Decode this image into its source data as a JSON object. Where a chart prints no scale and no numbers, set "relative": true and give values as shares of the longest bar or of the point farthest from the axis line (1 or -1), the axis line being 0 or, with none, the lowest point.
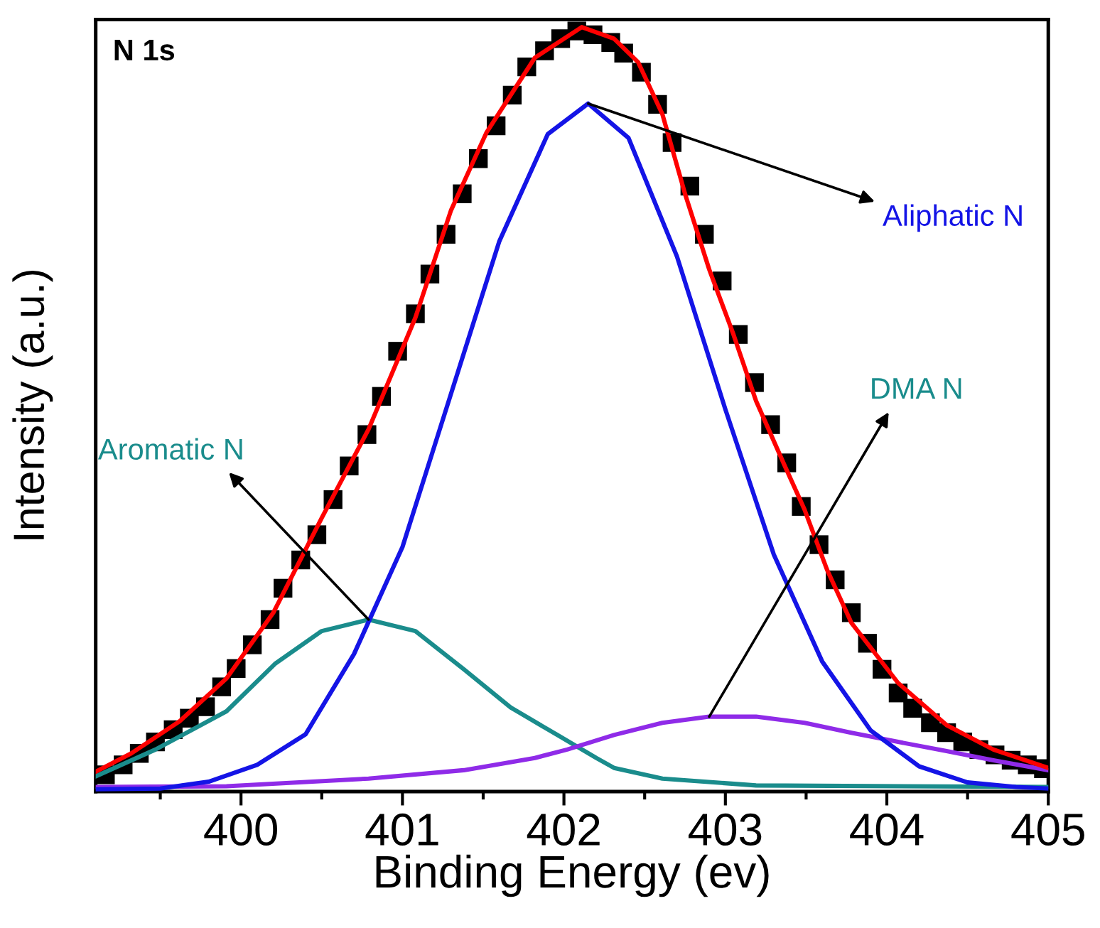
{
  "chart_data": {
    "type": "line",
    "relative": true,
    "xlabel": "Binding Energy (ev)",
    "ylabel": "Intensity (a.u.)",
    "xlim": [
      399.1,
      405
    ],
    "xticks": [
      {
        "value": 399.5,
        "label": null
      },
      400,
      {
        "value": 400.5,
        "label": null
      },
      401,
      {
        "value": 401.5,
        "label": null
      },
      402,
      {
        "value": 402.5,
        "label": null
      },
      403,
      {
        "value": 403.5,
        "label": null
      },
      404,
      {
        "value": 404.5,
        "label": null
      },
      405
    ],
    "grid": false,
    "legend": false,
    "annotations": [
      "N 1s"
    ],
    "series": [
      {
        "type": "scatter",
        "marker": "square",
        "color": "#000000",
        "x": [
          399.16,
          399.27,
          399.37,
          399.47,
          399.58,
          399.68,
          399.78,
          399.88,
          399.97,
          400.07,
          400.18,
          400.26,
          400.37,
          400.47,
          400.57,
          400.67,
          400.78,
          400.87,
          400.97,
          401.08,
          401.17,
          401.27,
          401.37,
          401.47,
          401.58,
          401.68,
          401.77,
          401.88,
          401.98,
          402.08,
          402.18,
          402.29,
          402.37,
          402.48,
          402.58,
          402.67,
          402.78,
          402.87,
          402.98,
          403.08,
          403.18,
          403.28,
          403.38,
          403.47,
          403.58,
          403.68,
          403.78,
          403.88,
          403.97,
          404.07,
          404.16,
          404.27,
          404.37,
          404.47,
          404.57,
          404.67,
          404.77,
          404.87,
          404.97
        ],
        "values": [
          0.022,
          0.035,
          0.05,
          0.065,
          0.081,
          0.096,
          0.111,
          0.137,
          0.161,
          0.192,
          0.225,
          0.266,
          0.303,
          0.336,
          0.382,
          0.426,
          0.467,
          0.517,
          0.576,
          0.625,
          0.677,
          0.729,
          0.782,
          0.828,
          0.871,
          0.911,
          0.948,
          0.969,
          0.985,
          0.995,
          0.99,
          0.98,
          0.966,
          0.941,
          0.899,
          0.849,
          0.792,
          0.729,
          0.668,
          0.598,
          0.535,
          0.48,
          0.43,
          0.373,
          0.323,
          0.277,
          0.234,
          0.194,
          0.16,
          0.129,
          0.109,
          0.09,
          0.077,
          0.065,
          0.055,
          0.048,
          0.041,
          0.035,
          0.03
        ]
      },
      {
        "color": "#1a8c8c",
        "name": "Aromatic N",
        "x": [
          399.1,
          399.47,
          399.91,
          400.21,
          400.5,
          400.79,
          401.08,
          401.38,
          401.67,
          401.96,
          402.2,
          402.31,
          402.61,
          403.19,
          405
        ],
        "values": [
          0.02,
          0.055,
          0.105,
          0.167,
          0.21,
          0.225,
          0.21,
          0.16,
          0.11,
          0.074,
          0.044,
          0.031,
          0.017,
          0.008,
          0.006
        ]
      },
      {
        "color": "#8f2be8",
        "name": "DMA N",
        "x": [
          399.1,
          399.91,
          400.79,
          401.38,
          401.82,
          402.02,
          402.31,
          402.61,
          402.9,
          403.19,
          403.49,
          403.78,
          404.07,
          404.37,
          404.66,
          405
        ],
        "values": [
          0.006,
          0.007,
          0.017,
          0.028,
          0.044,
          0.055,
          0.074,
          0.09,
          0.098,
          0.098,
          0.09,
          0.077,
          0.065,
          0.053,
          0.041,
          0.028
        ]
      },
      {
        "color": "#1414e6",
        "name": "Aliphatic N",
        "x": [
          399.1,
          399.5,
          399.8,
          400.1,
          400.4,
          400.7,
          401.0,
          401.3,
          401.6,
          401.9,
          402.15,
          402.4,
          402.7,
          403.0,
          403.3,
          403.6,
          403.9,
          404.2,
          404.5,
          404.8,
          405.0
        ],
        "values": [
          0.003,
          0.004,
          0.013,
          0.035,
          0.075,
          0.18,
          0.32,
          0.52,
          0.72,
          0.86,
          0.9,
          0.855,
          0.7,
          0.5,
          0.31,
          0.17,
          0.08,
          0.033,
          0.012,
          0.006,
          0.004
        ]
      },
      {
        "color": "#ff0000",
        "x": [
          399.1,
          399.32,
          399.62,
          399.91,
          400.2,
          400.5,
          400.79,
          401.08,
          401.3,
          401.52,
          401.82,
          402.11,
          402.31,
          402.46,
          402.61,
          402.75,
          402.9,
          403.05,
          403.19,
          403.37,
          403.49,
          403.63,
          403.78,
          404.07,
          404.37,
          404.66,
          405
        ],
        "values": [
          0.026,
          0.05,
          0.092,
          0.148,
          0.234,
          0.358,
          0.474,
          0.62,
          0.76,
          0.862,
          0.96,
          1.0,
          0.985,
          0.954,
          0.886,
          0.782,
          0.683,
          0.598,
          0.511,
          0.425,
          0.369,
          0.29,
          0.221,
          0.142,
          0.087,
          0.055,
          0.031
        ]
      }
    ]
  }
}
